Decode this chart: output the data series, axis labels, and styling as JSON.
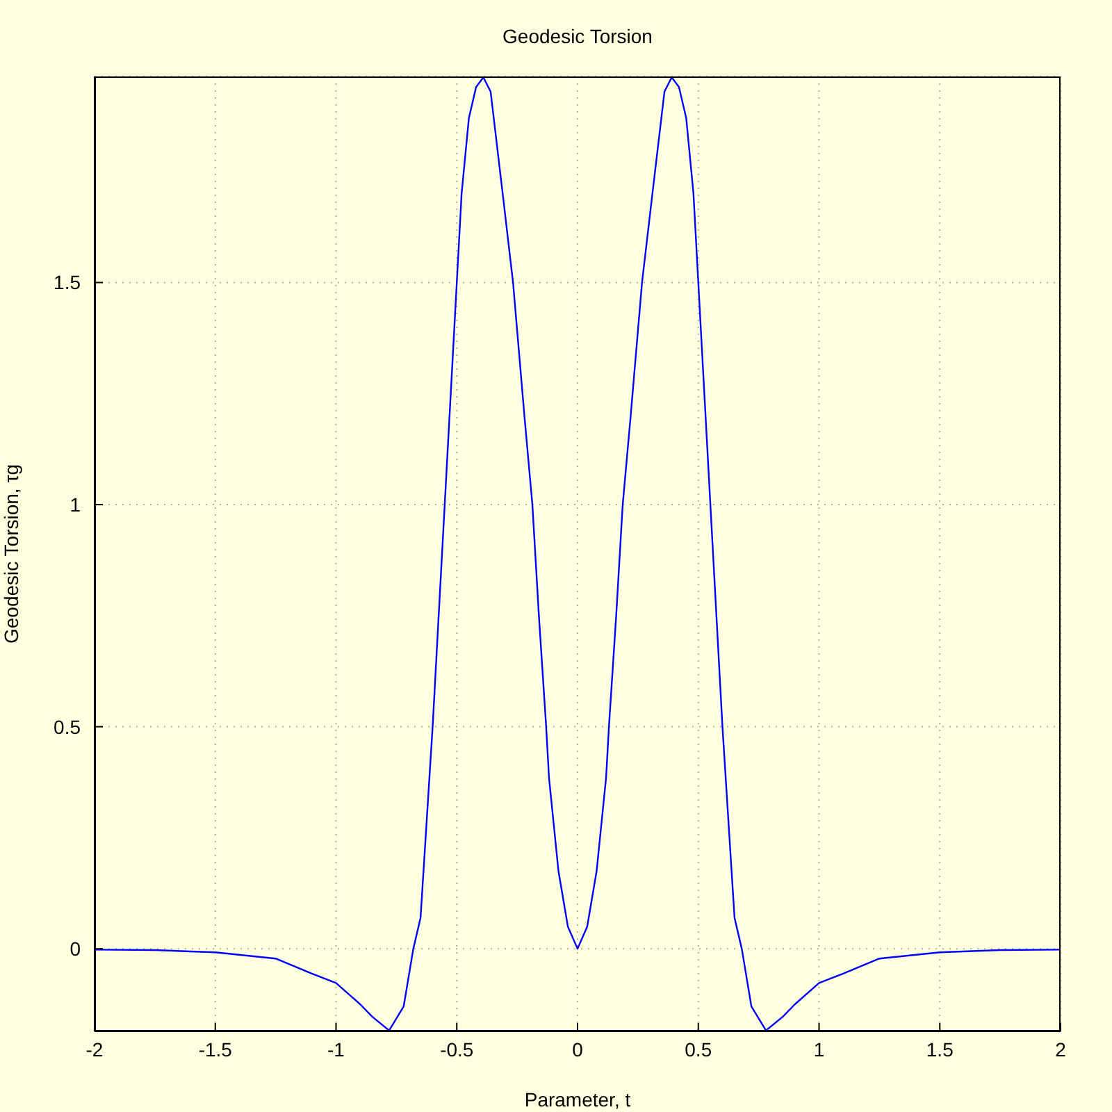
{
  "chart_data": {
    "type": "line",
    "title": "Geodesic Torsion",
    "xlabel": "Parameter, t",
    "ylabel": "Geodesic Torsion, τg",
    "x": [
      -2,
      -1.75,
      -1.5,
      -1.25,
      -1.1,
      -1,
      -0.9,
      -0.85,
      -0.78,
      -0.72,
      -0.68,
      -0.65,
      -0.6,
      -0.55,
      -0.5,
      -0.48,
      -0.45,
      -0.42,
      -0.39,
      -0.36,
      -0.31,
      -0.267,
      -0.22,
      -0.187,
      -0.16,
      -0.13,
      -0.118,
      -0.079,
      -0.04,
      0,
      0.04,
      0.079,
      0.118,
      0.13,
      0.16,
      0.187,
      0.22,
      0.267,
      0.31,
      0.36,
      0.39,
      0.42,
      0.45,
      0.48,
      0.5,
      0.55,
      0.6,
      0.65,
      0.68,
      0.72,
      0.78,
      0.85,
      0.9,
      1,
      1.1,
      1.25,
      1.5,
      1.75,
      2
    ],
    "series": [
      {
        "color": "#0000ff",
        "values": [
          -0.002,
          -0.003,
          -0.008,
          -0.022,
          -0.056,
          -0.077,
          -0.125,
          -0.153,
          -0.184,
          -0.13,
          0,
          0.07,
          0.5,
          1.0,
          1.5,
          1.7,
          1.87,
          1.94,
          1.962,
          1.93,
          1.7,
          1.5,
          1.2,
          1.0,
          0.75,
          0.5,
          0.384,
          0.175,
          0.05,
          0,
          0.05,
          0.175,
          0.384,
          0.5,
          0.75,
          1.0,
          1.2,
          1.5,
          1.7,
          1.93,
          1.962,
          1.94,
          1.87,
          1.7,
          1.5,
          1.0,
          0.5,
          0.07,
          0,
          -0.13,
          -0.184,
          -0.153,
          -0.125,
          -0.077,
          -0.056,
          -0.022,
          -0.008,
          -0.003,
          -0.002
        ]
      }
    ],
    "xlim": [
      -2,
      2
    ],
    "ylim": [
      -0.186,
      1.964
    ],
    "xticks": [
      -2,
      -1.5,
      -1,
      -0.5,
      0,
      0.5,
      1,
      1.5,
      2
    ],
    "yticks": [
      0,
      0.5,
      1,
      1.5
    ],
    "grid": true
  }
}
